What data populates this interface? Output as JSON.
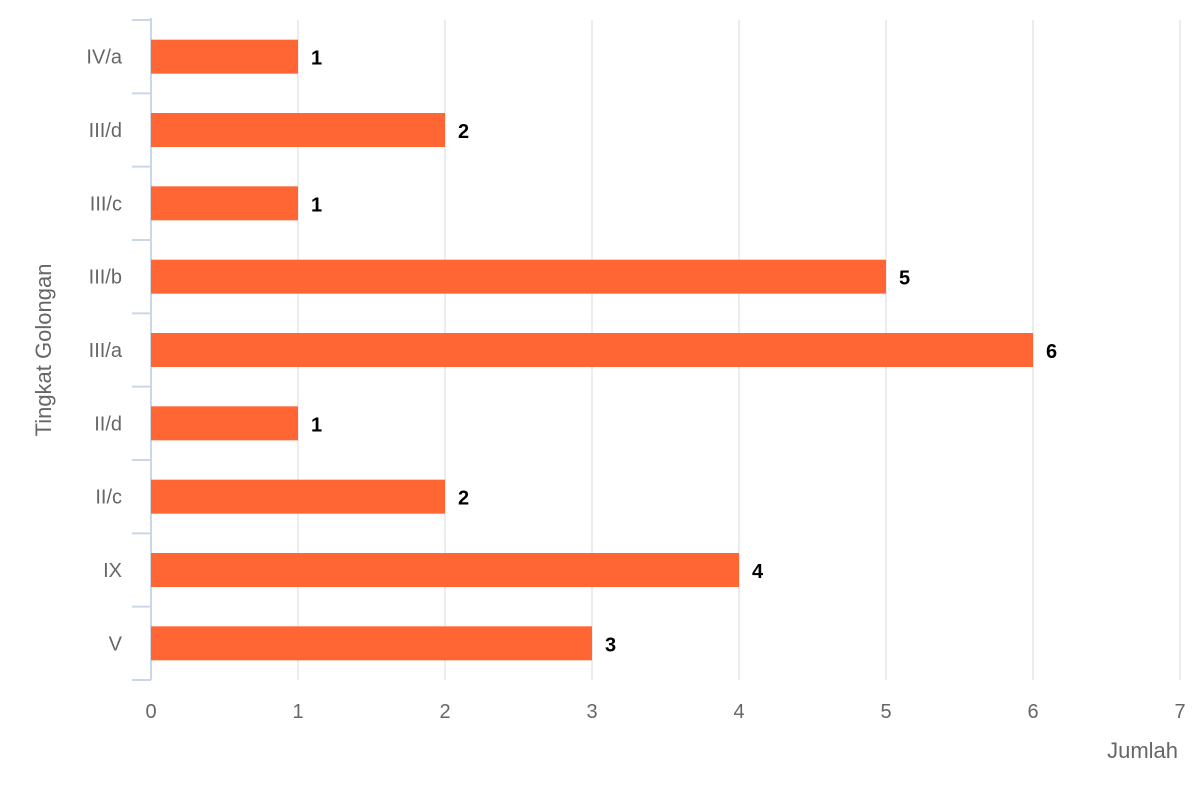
{
  "chart_data": {
    "type": "bar",
    "orientation": "horizontal",
    "title": "",
    "xlabel": "Jumlah",
    "ylabel": "Tingkat Golongan",
    "categories": [
      "IV/a",
      "III/d",
      "III/c",
      "III/b",
      "III/a",
      "II/d",
      "II/c",
      "IX",
      "V"
    ],
    "values": [
      1,
      2,
      1,
      5,
      6,
      1,
      2,
      4,
      3
    ],
    "xlim": [
      0,
      7
    ],
    "x_ticks": [
      "0",
      "1",
      "2",
      "3",
      "4",
      "5",
      "6",
      "7"
    ],
    "grid": true,
    "legend": "none",
    "data_labels": true
  },
  "colors": {
    "bar": "#ff6633",
    "grid": "#e6e6e6",
    "axis_line": "#ccd6eb",
    "tick_text": "#666666",
    "data_label": "#000000"
  }
}
